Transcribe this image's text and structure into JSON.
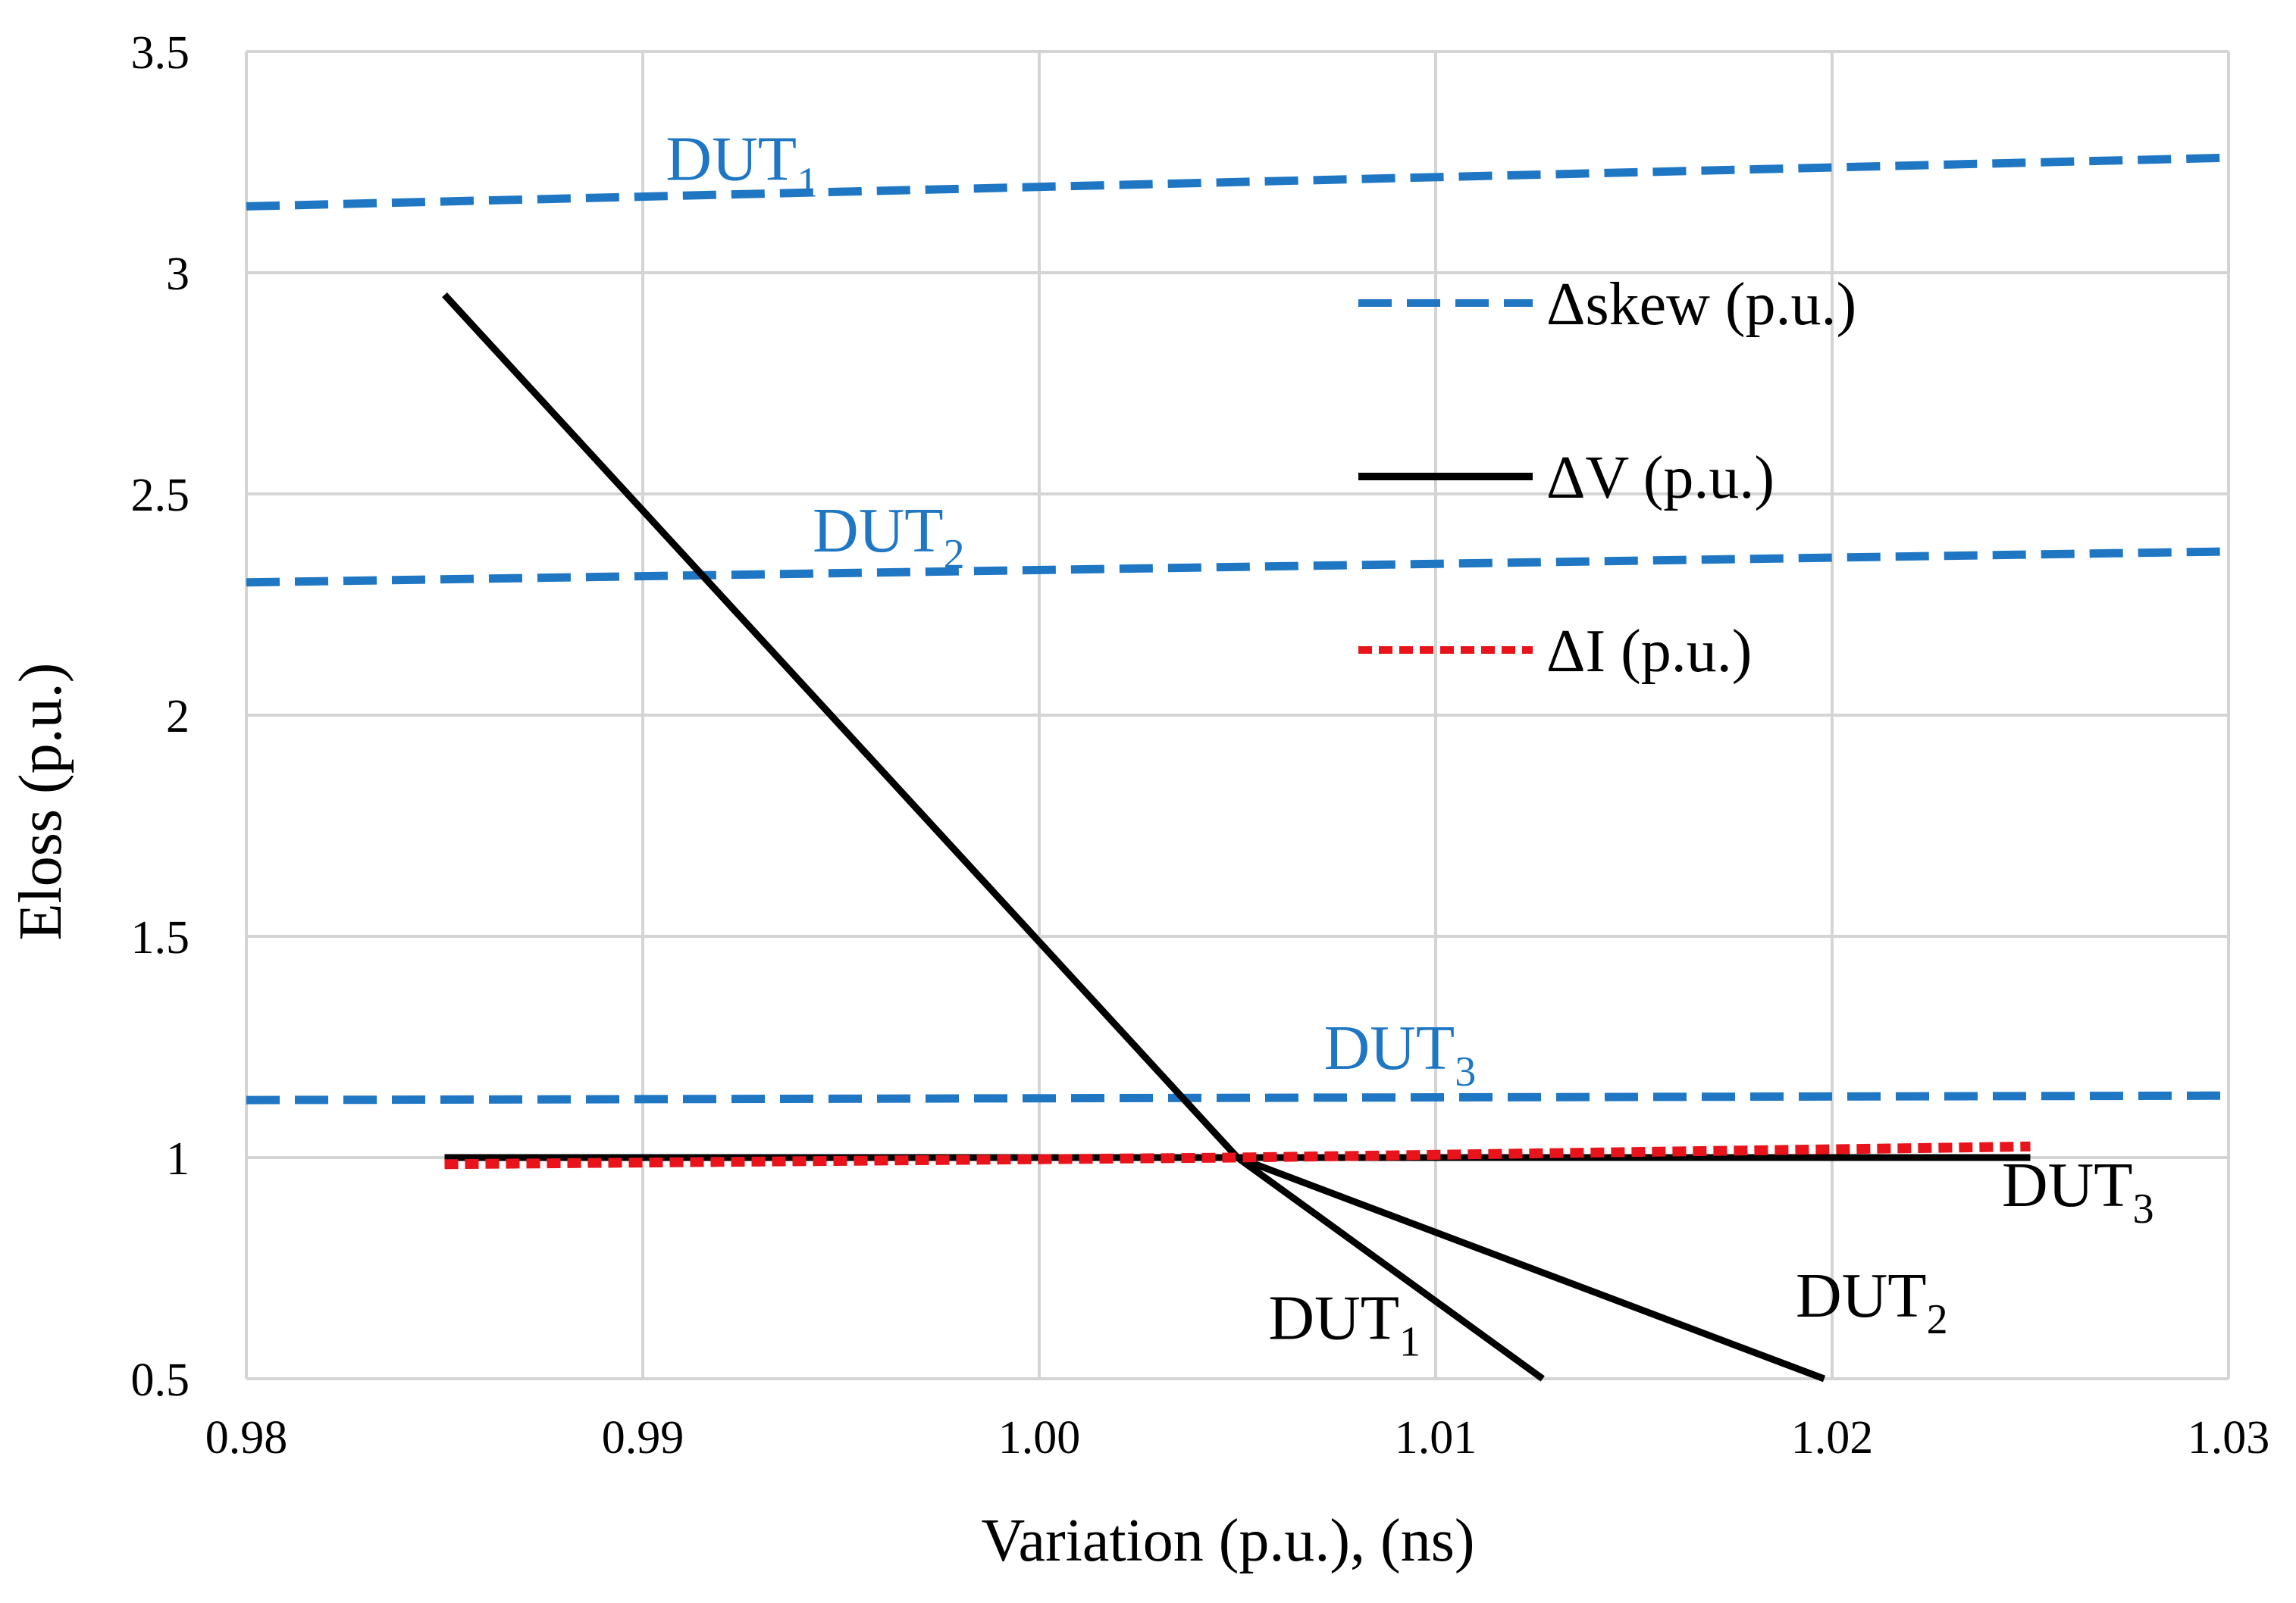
{
  "chart_data": {
    "type": "line",
    "title": "",
    "xlabel": "Variation (p.u.), (ns)",
    "ylabel": "Eloss (p.u.)",
    "xlim": [
      0.98,
      1.03
    ],
    "ylim": [
      0.5,
      3.5
    ],
    "x_ticks": [
      "0.98",
      "0.99",
      "1.00",
      "1.01",
      "1.02",
      "1.03"
    ],
    "y_ticks": [
      "0.5",
      "1",
      "1.5",
      "2",
      "2.5",
      "3",
      "3.5"
    ],
    "grid": true,
    "legend_position": "upper-right",
    "legend": [
      {
        "label": "Δskew (p.u.)",
        "style": "dashed",
        "color": "#1f77c4"
      },
      {
        "label": "ΔV (p.u.)",
        "style": "solid",
        "color": "#000000"
      },
      {
        "label": "ΔI (p.u.)",
        "style": "dotted",
        "color": "#e8131b"
      }
    ],
    "series": [
      {
        "name": "Δskew DUT1",
        "group": "Δskew (p.u.)",
        "color": "#1f77c4",
        "style": "dashed",
        "x": [
          0.98,
          1.03
        ],
        "y": [
          3.15,
          3.26
        ]
      },
      {
        "name": "Δskew DUT2",
        "group": "Δskew (p.u.)",
        "color": "#1f77c4",
        "style": "dashed",
        "x": [
          0.98,
          1.03
        ],
        "y": [
          2.3,
          2.37
        ]
      },
      {
        "name": "Δskew DUT3",
        "group": "Δskew (p.u.)",
        "color": "#1f77c4",
        "style": "dashed",
        "x": [
          0.98,
          1.03
        ],
        "y": [
          1.13,
          1.14
        ]
      },
      {
        "name": "ΔV DUT1",
        "group": "ΔV (p.u.)",
        "color": "#000000",
        "style": "solid",
        "x": [
          0.985,
          1.005,
          1.0127
        ],
        "y": [
          2.95,
          1.0,
          0.5
        ]
      },
      {
        "name": "ΔV DUT2",
        "group": "ΔV (p.u.)",
        "color": "#000000",
        "style": "solid",
        "x": [
          0.985,
          1.005,
          1.0198
        ],
        "y": [
          2.95,
          1.0,
          0.5
        ]
      },
      {
        "name": "ΔV DUT3",
        "group": "ΔV (p.u.)",
        "color": "#000000",
        "style": "solid",
        "x": [
          0.985,
          1.025
        ],
        "y": [
          1.0,
          1.0
        ]
      },
      {
        "name": "ΔI",
        "group": "ΔI (p.u.)",
        "color": "#e8131b",
        "style": "dotted",
        "x": [
          0.985,
          1.005,
          1.025
        ],
        "y": [
          0.985,
          1.0,
          1.025
        ]
      }
    ],
    "annotations": [
      {
        "base": "DUT",
        "sub": "1",
        "color": "blue",
        "x": 0.9925,
        "y": 3.21
      },
      {
        "base": "DUT",
        "sub": "2",
        "color": "blue",
        "x": 0.9962,
        "y": 2.37
      },
      {
        "base": "DUT",
        "sub": "3",
        "color": "blue",
        "x": 1.0091,
        "y": 1.2
      },
      {
        "base": "DUT",
        "sub": "1",
        "color": "black",
        "x": 1.0077,
        "y": 0.59
      },
      {
        "base": "DUT",
        "sub": "2",
        "color": "black",
        "x": 1.021,
        "y": 0.64
      },
      {
        "base": "DUT",
        "sub": "3",
        "color": "black",
        "x": 1.0262,
        "y": 0.89
      }
    ]
  }
}
